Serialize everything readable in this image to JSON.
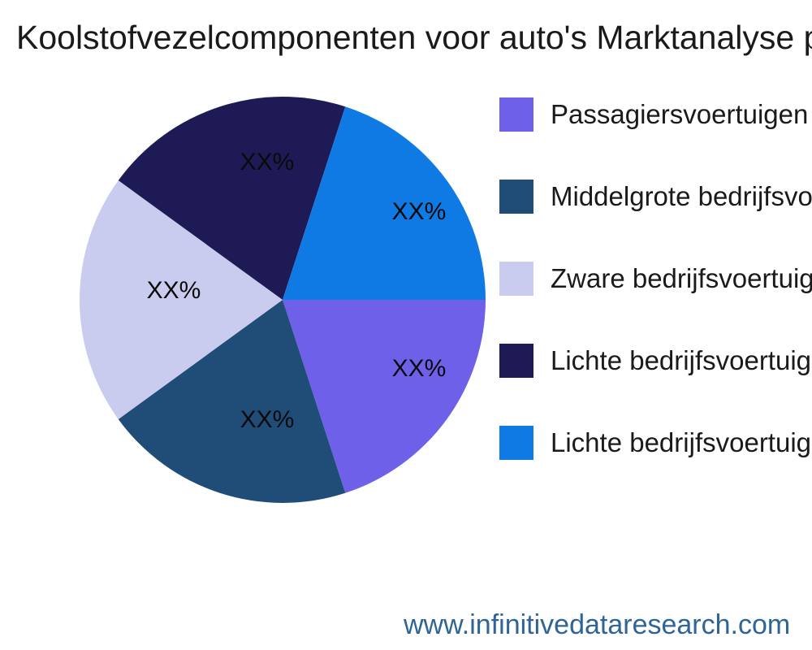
{
  "title": "Koolstofvezelcomponenten voor auto's Marktanalyse pe",
  "watermark": "www.infinitivedataresearch.com",
  "colors": {
    "title_text": "#1a1a1a",
    "watermark_text": "#2f6496",
    "percent_label_text": "#0a0a0a",
    "background": "#ffffff"
  },
  "chart_data": {
    "type": "pie",
    "title": "Koolstofvezelcomponenten voor auto's Marktanalyse pe",
    "legend_position": "right",
    "start_angle_deg": 0,
    "direction": "clockwise",
    "slices": [
      {
        "label": "Passagiersvoertuigen",
        "value": 20,
        "display_pct": "XX%",
        "color": "#6e60e8"
      },
      {
        "label": "Middelgrote bedrijfsvoertuigen",
        "value": 20,
        "display_pct": "XX%",
        "color": "#204c78"
      },
      {
        "label": "Zware bedrijfsvoertuigen",
        "value": 20,
        "display_pct": "XX%",
        "color": "#c9ccee"
      },
      {
        "label": "Lichte bedrijfsvoertuigen",
        "value": 20,
        "display_pct": "XX%",
        "color": "#1e1a55"
      },
      {
        "label": "Lichte bedrijfsvoertuigen",
        "value": 20,
        "display_pct": "XX%",
        "color": "#0f7ae3"
      }
    ]
  }
}
